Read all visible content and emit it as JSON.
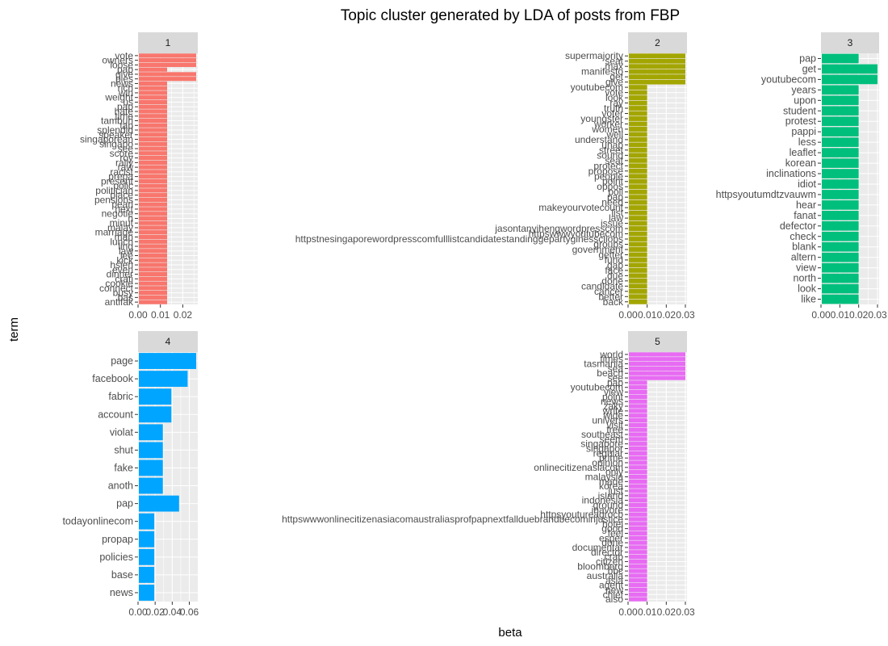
{
  "chart_data": {
    "type": "bar",
    "title": "Topic cluster generated by LDA of posts from FBP",
    "xlabel": "beta",
    "ylabel": "term",
    "grid": true,
    "legend": "none",
    "facets": [
      {
        "label": "1",
        "color": "#f8766d",
        "xlim": [
          0,
          0.026
        ],
        "x_ticks": [
          "0.00",
          "0.01",
          "0.02"
        ],
        "x_tick_values": [
          0,
          0.01,
          0.02
        ],
        "terms": [
          "vote",
          "owners",
          "loose",
          "pap",
          "give",
          "pies",
          "news",
          "rich",
          "win",
          "weight",
          "us",
          "pap",
          "hate",
          "time",
          "tamburi",
          "tap",
          "splendid",
          "speaker",
          "singaporean",
          "singapo",
          "see",
          "score",
          "roy",
          "rally",
          "raw",
          "racist",
          "prepa",
          "present",
          "polic",
          "politician",
          "place",
          "pensions",
          "pearl",
          "next",
          "negotie",
          "n",
          "minut",
          "malay",
          "marriage",
          "man",
          "lunch",
          "ling",
          "law",
          "lee",
          "kick",
          "hsien",
          "even",
          "dinner",
          "crati",
          "cookie",
          "connect",
          "busy",
          "bas",
          "antifak"
        ],
        "values": [
          0.026,
          0.026,
          0.026,
          0.013,
          0.026,
          0.026,
          0.013,
          0.013,
          0.013,
          0.013,
          0.013,
          0.013,
          0.013,
          0.013,
          0.013,
          0.013,
          0.013,
          0.013,
          0.013,
          0.013,
          0.013,
          0.013,
          0.013,
          0.013,
          0.013,
          0.013,
          0.013,
          0.013,
          0.013,
          0.013,
          0.013,
          0.013,
          0.013,
          0.013,
          0.013,
          0.013,
          0.013,
          0.013,
          0.013,
          0.013,
          0.013,
          0.013,
          0.013,
          0.013,
          0.013,
          0.013,
          0.013,
          0.013,
          0.013,
          0.013,
          0.013,
          0.013,
          0.013,
          0.013
        ]
      },
      {
        "label": "2",
        "color": "#a3a500",
        "xlim": [
          0,
          0.03
        ],
        "x_ticks": [
          "0.00",
          "0.01",
          "0.02",
          "0.03"
        ],
        "x_tick_values": [
          0,
          0.01,
          0.02,
          0.03
        ],
        "terms": [
          "supermajority",
          "seat",
          "max",
          "manifesto",
          "get",
          "give",
          "youtubecom",
          "vote",
          "look",
          "ray",
          "truth",
          "voter",
          "youngster",
          "worker",
          "women",
          "well",
          "understand",
          "unap",
          "street",
          "sound",
          "seat",
          "protect",
          "propose",
          "people",
          "point",
          "oppos",
          "poll",
          "pap",
          "need",
          "makeyourvotecount",
          "list",
          "law",
          "issue",
          "jasontanyihengwordpresscom",
          "httpswwwyoutubecom",
          "httpstnesingaporewordpresscomfulllistcandidatestandinggepartyginesscliobs",
          "groups",
          "government",
          "getter",
          "fund",
          "gap",
          "face",
          "due",
          "done",
          "candidate",
          "cancer",
          "better",
          "back"
        ],
        "values": [
          0.03,
          0.03,
          0.03,
          0.03,
          0.03,
          0.03,
          0.01,
          0.01,
          0.01,
          0.01,
          0.01,
          0.01,
          0.01,
          0.01,
          0.01,
          0.01,
          0.01,
          0.01,
          0.01,
          0.01,
          0.01,
          0.01,
          0.01,
          0.01,
          0.01,
          0.01,
          0.01,
          0.01,
          0.01,
          0.01,
          0.01,
          0.01,
          0.01,
          0.01,
          0.01,
          0.01,
          0.01,
          0.01,
          0.01,
          0.01,
          0.01,
          0.01,
          0.01,
          0.01,
          0.01,
          0.01,
          0.01,
          0.01
        ]
      },
      {
        "label": "3",
        "color": "#00bf7d",
        "xlim": [
          0,
          0.03
        ],
        "x_ticks": [
          "0.00",
          "0.01",
          "0.02",
          "0.03"
        ],
        "x_tick_values": [
          0,
          0.01,
          0.02,
          0.03
        ],
        "terms": [
          "pap",
          "get",
          "youtubecom",
          "years",
          "upon",
          "student",
          "protest",
          "pappi",
          "less",
          "leaflet",
          "korean",
          "inclinations",
          "idiot",
          "httpsyoutumdtzvauwm",
          "hear",
          "fanat",
          "defector",
          "check",
          "blank",
          "altern",
          "view",
          "north",
          "look",
          "like"
        ],
        "values": [
          0.02,
          0.03,
          0.03,
          0.02,
          0.02,
          0.02,
          0.02,
          0.02,
          0.02,
          0.02,
          0.02,
          0.02,
          0.02,
          0.02,
          0.02,
          0.02,
          0.02,
          0.02,
          0.02,
          0.02,
          0.02,
          0.02,
          0.02,
          0.02
        ]
      },
      {
        "label": "4",
        "color": "#00a5ff",
        "xlim": [
          0,
          0.068
        ],
        "x_ticks": [
          "0.00",
          "0.02",
          "0.04",
          "0.06"
        ],
        "x_tick_values": [
          0,
          0.02,
          0.04,
          0.06
        ],
        "terms": [
          "page",
          "facebook",
          "fabric",
          "account",
          "violat",
          "shut",
          "fake",
          "anoth",
          "pap",
          "todayonlinecom",
          "propap",
          "policies",
          "base",
          "news"
        ],
        "values": [
          0.068,
          0.058,
          0.039,
          0.039,
          0.029,
          0.029,
          0.029,
          0.029,
          0.048,
          0.019,
          0.019,
          0.019,
          0.019,
          0.019
        ]
      },
      {
        "label": "5",
        "color": "#e76bf3",
        "xlim": [
          0,
          0.03
        ],
        "x_ticks": [
          "0.00",
          "0.01",
          "0.02",
          "0.03"
        ],
        "x_tick_values": [
          0,
          0.01,
          0.02,
          0.03
        ],
        "terms": [
          "world",
          "times",
          "tasmania",
          "sea",
          "beach",
          "see",
          "pap",
          "youtubecom",
          "view",
          "point",
          "news",
          "zaky",
          "write",
          "wide",
          "univers",
          "visit",
          "tree",
          "southeast",
          "seem",
          "singapore",
          "singapor",
          "regular",
          "prime",
          "opinion",
          "onlinecitizenasiacom",
          "only",
          "malaysia",
          "made",
          "korea",
          "just",
          "island",
          "indonesia",
          "ground",
          "inavore",
          "httpsyoutureagrocb",
          "httpswwwonlinecitizenasiacomaustraliasprofpapnextfallduebrandbecominjustice",
          "hotel",
          "good",
          "feel",
          "esper",
          "done",
          "documentar",
          "director",
          "crab",
          "citizen",
          "bloomberg",
          "bbc",
          "australia",
          "asia",
          "agent",
          "new",
          "chief",
          "also"
        ],
        "values": [
          0.03,
          0.03,
          0.03,
          0.03,
          0.03,
          0.03,
          0.01,
          0.01,
          0.01,
          0.01,
          0.01,
          0.01,
          0.01,
          0.01,
          0.01,
          0.01,
          0.01,
          0.01,
          0.01,
          0.01,
          0.01,
          0.01,
          0.01,
          0.01,
          0.01,
          0.01,
          0.01,
          0.01,
          0.01,
          0.01,
          0.01,
          0.01,
          0.01,
          0.01,
          0.01,
          0.01,
          0.01,
          0.01,
          0.01,
          0.01,
          0.01,
          0.01,
          0.01,
          0.01,
          0.01,
          0.01,
          0.01,
          0.01,
          0.01,
          0.01,
          0.01,
          0.01,
          0.01
        ]
      }
    ]
  }
}
